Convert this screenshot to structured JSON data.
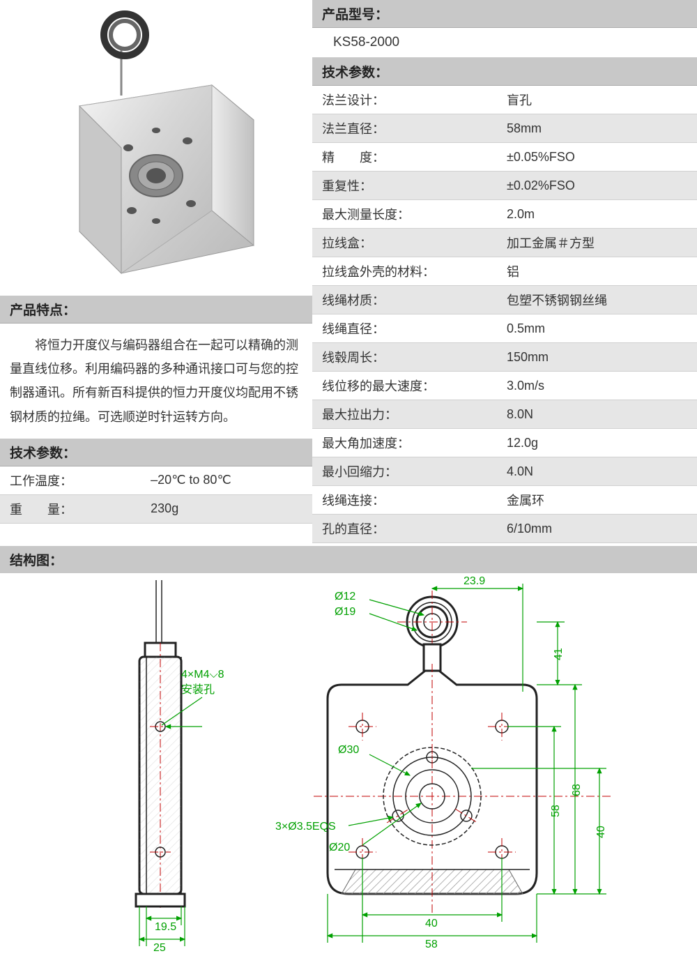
{
  "left": {
    "features_header": "产品特点：",
    "description": "　　将恒力开度仪与编码器组合在一起可以精确的测量直线位移。利用编码器的多种通讯接口可与您的控制器通讯。所有新百科提供的恒力开度仪均配用不锈钢材质的拉绳。可选顺逆时针运转方向。",
    "spec_header": "技术参数：",
    "specs": [
      {
        "label": "工作温度：",
        "value": "–20℃ to 80℃"
      },
      {
        "label": "重　　量：",
        "value": "230g"
      }
    ]
  },
  "right": {
    "model_header": "产品型号：",
    "model_value": "KS58-2000",
    "spec_header": "技术参数：",
    "specs": [
      {
        "label": "法兰设计：",
        "value": "盲孔"
      },
      {
        "label": "法兰直径：",
        "value": "58mm"
      },
      {
        "label": "精　　度：",
        "value": "±0.05%FSO"
      },
      {
        "label": "重复性：",
        "value": "±0.02%FSO"
      },
      {
        "label": "最大测量长度：",
        "value": "2.0m"
      },
      {
        "label": "拉线盒：",
        "value": "加工金属＃方型"
      },
      {
        "label": "拉线盒外壳的材料：",
        "value": "铝"
      },
      {
        "label": "线绳材质：",
        "value": "包塑不锈钢钢丝绳"
      },
      {
        "label": "线绳直径：",
        "value": "0.5mm"
      },
      {
        "label": "线毂周长：",
        "value": "150mm"
      },
      {
        "label": "线位移的最大速度：",
        "value": "3.0m/s"
      },
      {
        "label": "最大拉出力：",
        "value": "8.0N"
      },
      {
        "label": "最大角加速度：",
        "value": "12.0g"
      },
      {
        "label": "最小回缩力：",
        "value": "4.0N"
      },
      {
        "label": "线绳连接：",
        "value": "金属环"
      },
      {
        "label": "孔的直径：",
        "value": "6/10mm"
      }
    ]
  },
  "structure_header": "结构图：",
  "diagram": {
    "annotations": {
      "mounting_holes": "4×M4⌵8",
      "mounting_holes_sub": "安装孔",
      "d12": "Ø12",
      "d19": "Ø19",
      "d30": "Ø30",
      "d20": "Ø20",
      "eqs": "3×Ø3.5EQS",
      "w239": "23.9",
      "h41": "41",
      "h58": "58",
      "h68": "68",
      "h40": "40",
      "w40": "40",
      "w58": "58",
      "w195": "19.5",
      "w25": "25"
    },
    "colors": {
      "outline": "#222222",
      "dimension": "#00a000",
      "centerline": "#c00000",
      "hatch": "#999999"
    }
  }
}
